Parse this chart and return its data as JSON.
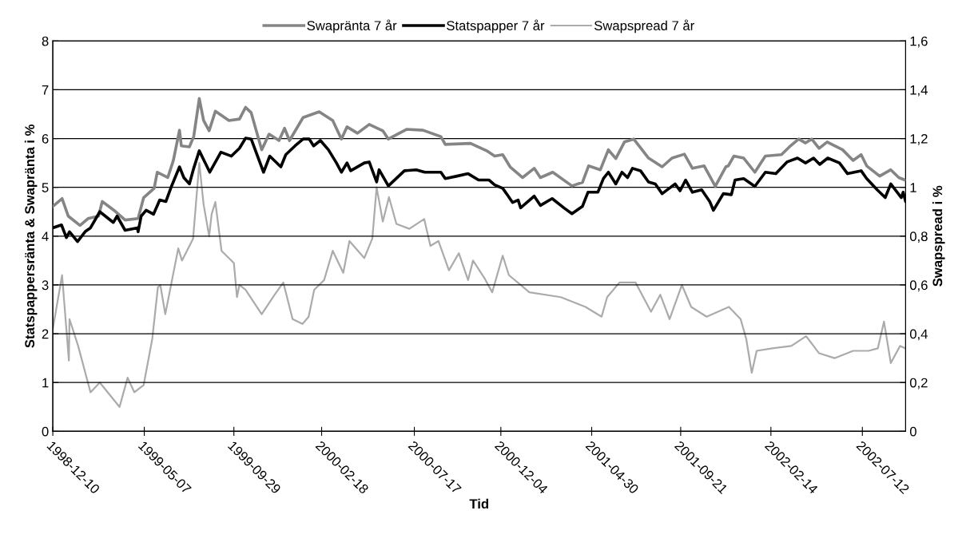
{
  "chart_data": {
    "type": "line",
    "xlabel": "Tid",
    "ylabel": "Statspappersränta & Swapränta i %",
    "y2label": "Swapspread i %",
    "xlim": [
      "1998-12-10",
      "2002-09-20"
    ],
    "xticks": [
      "1998-12-10",
      "1999-05-07",
      "1999-09-29",
      "2000-02-18",
      "2000-07-17",
      "2000-12-04",
      "2001-04-30",
      "2001-09-21",
      "2002-02-14",
      "2002-07-12"
    ],
    "ylim": [
      0,
      8
    ],
    "yticks": [
      0,
      1,
      2,
      3,
      4,
      5,
      6,
      7,
      8
    ],
    "y2lim": [
      0,
      1.6
    ],
    "y2ticks": [
      0,
      {
        "value": 0.2,
        "label": "0,2"
      },
      {
        "value": 0.4,
        "label": "0,4"
      },
      {
        "value": 0.6,
        "label": "0,6"
      },
      {
        "value": 0.8,
        "label": "0,8"
      },
      1,
      {
        "value": 1.2,
        "label": "1,2"
      },
      {
        "value": 1.4,
        "label": "1,4"
      },
      {
        "value": 1.6,
        "label": "1,6"
      }
    ],
    "grid": "y",
    "legend": "top",
    "marker": "none",
    "line_style": "solid",
    "series": [
      {
        "name": "Swapränta 7 år",
        "color": "#858585",
        "x": [
          "1998-12-10",
          "1998-12-25",
          "1999-01-04",
          "1999-01-23",
          "1999-02-05",
          "1999-02-22",
          "1999-02-28",
          "1999-03-19",
          "1999-04-06",
          "1999-04-27",
          "1999-05-06",
          "1999-05-23",
          "1999-05-28",
          "1999-06-14",
          "1999-06-23",
          "1999-07-03",
          "1999-07-06",
          "1999-07-19",
          "1999-07-26",
          "1999-08-04",
          "1999-08-11",
          "1999-08-20",
          "1999-08-30",
          "1999-09-21",
          "1999-10-08",
          "1999-10-18",
          "1999-10-27",
          "1999-11-13",
          "1999-11-25",
          "1999-12-11",
          "1999-12-20",
          "1999-12-28",
          "2000-01-19",
          "2000-02-14",
          "2000-03-07",
          "2000-03-21",
          "2000-03-30",
          "2000-04-16",
          "2000-05-05",
          "2000-05-27",
          "2000-06-05",
          "2000-07-05",
          "2000-07-31",
          "2000-08-29",
          "2000-09-05",
          "2000-10-16",
          "2000-11-11",
          "2000-11-24",
          "2000-12-07",
          "2000-12-19",
          "2001-01-08",
          "2001-01-27",
          "2001-02-06",
          "2001-02-26",
          "2001-03-29",
          "2001-04-15",
          "2001-04-25",
          "2001-05-14",
          "2001-05-27",
          "2001-06-08",
          "2001-06-22",
          "2001-07-07",
          "2001-07-31",
          "2001-08-22",
          "2001-09-07",
          "2001-09-27",
          "2001-10-10",
          "2001-10-29",
          "2001-11-16",
          "2001-12-03",
          "2001-12-07",
          "2001-12-16",
          "2002-01-01",
          "2002-01-19",
          "2002-02-05",
          "2002-03-03",
          "2002-03-16",
          "2002-03-31",
          "2002-04-11",
          "2002-04-21",
          "2002-05-03",
          "2002-05-16",
          "2002-06-10",
          "2002-06-27",
          "2002-07-10",
          "2002-07-19",
          "2002-08-09",
          "2002-08-27",
          "2002-09-09",
          "2002-09-19"
        ],
        "values": [
          4.61,
          4.77,
          4.41,
          4.22,
          4.36,
          4.41,
          4.71,
          4.53,
          4.33,
          4.36,
          4.79,
          4.98,
          5.31,
          5.2,
          5.55,
          6.17,
          5.85,
          5.83,
          6.04,
          6.82,
          6.37,
          6.16,
          6.56,
          6.37,
          6.4,
          6.64,
          6.53,
          5.77,
          6.09,
          5.96,
          6.21,
          5.96,
          6.43,
          6.55,
          6.37,
          5.99,
          6.24,
          6.11,
          6.29,
          6.16,
          5.99,
          6.19,
          6.17,
          6.04,
          5.88,
          5.9,
          5.75,
          5.64,
          5.67,
          5.42,
          5.2,
          5.39,
          5.2,
          5.31,
          5.03,
          5.1,
          5.44,
          5.36,
          5.77,
          5.59,
          5.93,
          5.99,
          5.6,
          5.42,
          5.6,
          5.68,
          5.39,
          5.44,
          5.02,
          5.42,
          5.44,
          5.64,
          5.6,
          5.31,
          5.64,
          5.67,
          5.83,
          5.99,
          5.91,
          5.99,
          5.8,
          5.93,
          5.77,
          5.55,
          5.67,
          5.44,
          5.23,
          5.36,
          5.2,
          5.15
        ]
      },
      {
        "name": "Statspapper 7 år",
        "color": "#000000",
        "x": [
          "1998-12-10",
          "1998-12-24",
          "1999-01-01",
          "1999-01-06",
          "1999-01-19",
          "1999-02-01",
          "1999-02-09",
          "1999-02-24",
          "1999-03-05",
          "1999-03-18",
          "1999-03-24",
          "1999-04-06",
          "1999-04-26",
          "1999-04-27",
          "1999-05-02",
          "1999-05-10",
          "1999-05-22",
          "1999-06-01",
          "1999-06-11",
          "1999-06-20",
          "1999-07-03",
          "1999-07-10",
          "1999-07-19",
          "1999-07-26",
          "1999-08-04",
          "1999-08-21",
          "1999-09-08",
          "1999-09-25",
          "1999-10-08",
          "1999-10-18",
          "1999-10-27",
          "1999-11-16",
          "1999-11-26",
          "1999-12-14",
          "1999-12-22",
          "2000-01-06",
          "2000-01-19",
          "2000-01-29",
          "2000-02-05",
          "2000-02-16",
          "2000-02-29",
          "2000-03-13",
          "2000-03-21",
          "2000-03-30",
          "2000-04-05",
          "2000-04-27",
          "2000-05-05",
          "2000-05-17",
          "2000-05-21",
          "2000-06-05",
          "2000-07-01",
          "2000-07-20",
          "2000-08-03",
          "2000-08-29",
          "2000-09-05",
          "2000-09-24",
          "2000-10-12",
          "2000-10-29",
          "2000-11-15",
          "2000-11-24",
          "2000-12-07",
          "2000-12-16",
          "2000-12-23",
          "2001-01-01",
          "2001-01-05",
          "2001-01-27",
          "2001-02-06",
          "2001-02-25",
          "2001-03-16",
          "2001-03-29",
          "2001-04-15",
          "2001-04-24",
          "2001-05-10",
          "2001-05-19",
          "2001-05-27",
          "2001-06-08",
          "2001-06-18",
          "2001-06-27",
          "2001-07-05",
          "2001-07-18",
          "2001-07-31",
          "2001-08-11",
          "2001-08-22",
          "2001-09-12",
          "2001-09-20",
          "2001-09-29",
          "2001-10-10",
          "2001-10-25",
          "2001-11-07",
          "2001-11-13",
          "2001-11-29",
          "2001-12-12",
          "2001-12-18",
          "2002-01-01",
          "2002-01-19",
          "2002-02-05",
          "2002-02-22",
          "2002-03-12",
          "2002-03-29",
          "2002-04-11",
          "2002-04-24",
          "2002-05-04",
          "2002-05-17",
          "2002-06-05",
          "2002-06-18",
          "2002-07-10",
          "2002-07-19",
          "2002-08-05",
          "2002-08-18",
          "2002-08-27",
          "2002-09-13",
          "2002-09-16",
          "2002-09-20"
        ],
        "values": [
          4.17,
          4.23,
          3.97,
          4.09,
          3.89,
          4.1,
          4.17,
          4.5,
          4.41,
          4.28,
          4.41,
          4.12,
          4.17,
          4.09,
          4.41,
          4.53,
          4.45,
          4.74,
          4.71,
          5.02,
          5.42,
          5.2,
          5.07,
          5.39,
          5.75,
          5.31,
          5.72,
          5.64,
          5.8,
          6.01,
          5.99,
          5.31,
          5.64,
          5.42,
          5.67,
          5.85,
          5.99,
          5.99,
          5.85,
          5.96,
          5.77,
          5.5,
          5.31,
          5.5,
          5.34,
          5.5,
          5.52,
          5.11,
          5.36,
          5.03,
          5.34,
          5.36,
          5.31,
          5.31,
          5.18,
          5.23,
          5.28,
          5.15,
          5.15,
          5.05,
          4.98,
          4.82,
          4.69,
          4.74,
          4.58,
          4.82,
          4.63,
          4.77,
          4.58,
          4.46,
          4.61,
          4.9,
          4.9,
          5.18,
          5.31,
          5.07,
          5.31,
          5.2,
          5.39,
          5.34,
          5.11,
          5.07,
          4.87,
          5.07,
          4.93,
          5.15,
          4.9,
          4.95,
          4.71,
          4.53,
          4.87,
          4.85,
          5.15,
          5.18,
          5.02,
          5.31,
          5.28,
          5.52,
          5.6,
          5.5,
          5.6,
          5.47,
          5.6,
          5.5,
          5.28,
          5.34,
          5.18,
          4.95,
          4.79,
          5.07,
          4.79,
          4.9,
          4.71
        ]
      },
      {
        "name": "Swapspread 7 år",
        "color": "#ababab",
        "axis": "y2",
        "x": [
          "1998-12-10",
          "1998-12-25",
          "1999-01-05",
          "1999-01-06",
          "1999-01-20",
          "1999-02-09",
          "1999-02-24",
          "1999-03-12",
          "1999-03-28",
          "1999-04-10",
          "1999-04-21",
          "1999-05-06",
          "1999-05-20",
          "1999-05-29",
          "1999-06-02",
          "1999-06-10",
          "1999-07-01",
          "1999-07-07",
          "1999-07-25",
          "1999-08-04",
          "1999-08-11",
          "1999-08-20",
          "1999-08-24",
          "1999-08-30",
          "1999-09-09",
          "1999-09-29",
          "1999-10-04",
          "1999-10-08",
          "1999-10-18",
          "1999-11-13",
          "1999-12-04",
          "1999-12-18",
          "2000-01-02",
          "2000-01-18",
          "2000-01-28",
          "2000-02-06",
          "2000-02-22",
          "2000-03-07",
          "2000-03-24",
          "2000-04-03",
          "2000-04-27",
          "2000-05-10",
          "2000-05-17",
          "2000-05-27",
          "2000-06-06",
          "2000-06-18",
          "2000-07-09",
          "2000-08-02",
          "2000-08-12",
          "2000-08-25",
          "2000-09-11",
          "2000-09-27",
          "2000-10-12",
          "2000-10-20",
          "2000-11-07",
          "2000-11-20",
          "2000-12-07",
          "2000-12-17",
          "2001-01-05",
          "2001-01-19",
          "2001-03-11",
          "2001-04-20",
          "2001-05-16",
          "2001-05-25",
          "2001-06-14",
          "2001-07-10",
          "2001-08-04",
          "2001-08-19",
          "2001-09-03",
          "2001-09-23",
          "2001-10-08",
          "2001-11-02",
          "2001-12-08",
          "2001-12-27",
          "2002-01-05",
          "2002-01-14",
          "2002-01-22",
          "2002-02-16",
          "2002-03-19",
          "2002-04-12",
          "2002-05-03",
          "2002-05-28",
          "2002-06-27",
          "2002-07-22",
          "2002-08-06",
          "2002-08-16",
          "2002-08-27",
          "2002-09-11",
          "2002-09-20"
        ],
        "values": [
          0.42,
          0.64,
          0.29,
          0.46,
          0.35,
          0.16,
          0.2,
          0.15,
          0.1,
          0.22,
          0.16,
          0.19,
          0.38,
          0.59,
          0.6,
          0.48,
          0.75,
          0.7,
          0.79,
          1.1,
          0.93,
          0.8,
          0.89,
          0.94,
          0.74,
          0.69,
          0.55,
          0.6,
          0.58,
          0.48,
          0.56,
          0.61,
          0.46,
          0.44,
          0.47,
          0.58,
          0.62,
          0.74,
          0.65,
          0.78,
          0.71,
          0.79,
          1.0,
          0.86,
          0.96,
          0.85,
          0.83,
          0.87,
          0.76,
          0.78,
          0.66,
          0.73,
          0.62,
          0.7,
          0.63,
          0.57,
          0.72,
          0.64,
          0.6,
          0.57,
          0.55,
          0.51,
          0.47,
          0.55,
          0.61,
          0.61,
          0.49,
          0.56,
          0.46,
          0.6,
          0.51,
          0.47,
          0.51,
          0.46,
          0.38,
          0.24,
          0.33,
          0.34,
          0.35,
          0.39,
          0.32,
          0.3,
          0.33,
          0.33,
          0.34,
          0.45,
          0.28,
          0.35,
          0.34
        ]
      }
    ]
  }
}
